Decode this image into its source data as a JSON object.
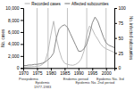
{
  "chart_data": {
    "type": "line",
    "x": [
      1970,
      1971,
      1972,
      1973,
      1974,
      1975,
      1976,
      1977,
      1978,
      1979,
      1980,
      1981,
      1982,
      1983,
      1984,
      1985,
      1986,
      1987,
      1988,
      1989,
      1990,
      1991,
      1992,
      1993,
      1994,
      1995,
      1996,
      1997,
      1998,
      1999,
      2000,
      2001,
      2002,
      2003
    ],
    "series": [
      {
        "name": "Recorded cases",
        "color": "#bbbbbb",
        "values": [
          150,
          160,
          200,
          220,
          250,
          280,
          350,
          600,
          1200,
          2800,
          5500,
          7800,
          5000,
          3000,
          1500,
          800,
          600,
          500,
          450,
          600,
          900,
          1500,
          2800,
          5500,
          7000,
          6500,
          5500,
          4800,
          4000,
          3500,
          3200,
          3000,
          2800,
          2600
        ]
      },
      {
        "name": "Affected subcounties",
        "color": "#888888",
        "axis": "y2",
        "values": [
          4,
          4,
          5,
          5,
          6,
          6,
          7,
          8,
          10,
          14,
          18,
          25,
          50,
          65,
          70,
          72,
          68,
          58,
          48,
          38,
          28,
          28,
          32,
          40,
          55,
          75,
          85,
          78,
          65,
          52,
          42,
          38,
          36,
          34
        ]
      }
    ],
    "xlim": [
      1970,
      2003
    ],
    "xticks": [
      1970,
      1975,
      1980,
      1985,
      1990,
      1995,
      2000
    ],
    "ylim": [
      0,
      10000
    ],
    "yticks": [
      0,
      {
        "value": 2000,
        "label": "2,000"
      },
      {
        "value": 4000,
        "label": "4,000"
      },
      {
        "value": 6000,
        "label": "6,000"
      },
      {
        "value": 8000,
        "label": "8,000"
      },
      {
        "value": 10000,
        "label": "10,000"
      }
    ],
    "y2lim": [
      0,
      100
    ],
    "y2ticks": [
      0,
      25,
      50,
      75,
      100
    ],
    "ylabel": "No. cases",
    "y2label": "No. infected subcounties",
    "vlines": [
      1975,
      1979,
      1986,
      1993,
      2000
    ],
    "annotations": [
      {
        "text": "Preepidemic",
        "x": 1972
      },
      {
        "text": "Epidemic\n1977-1983",
        "x": 1977
      },
      {
        "text": "Endemic period",
        "x": 1989
      },
      {
        "text": "Epidemic No. 2nd period",
        "x": 1996
      },
      {
        "text": "Epidemic No. 3rd",
        "x": 2001.5
      }
    ],
    "legend": "top"
  }
}
